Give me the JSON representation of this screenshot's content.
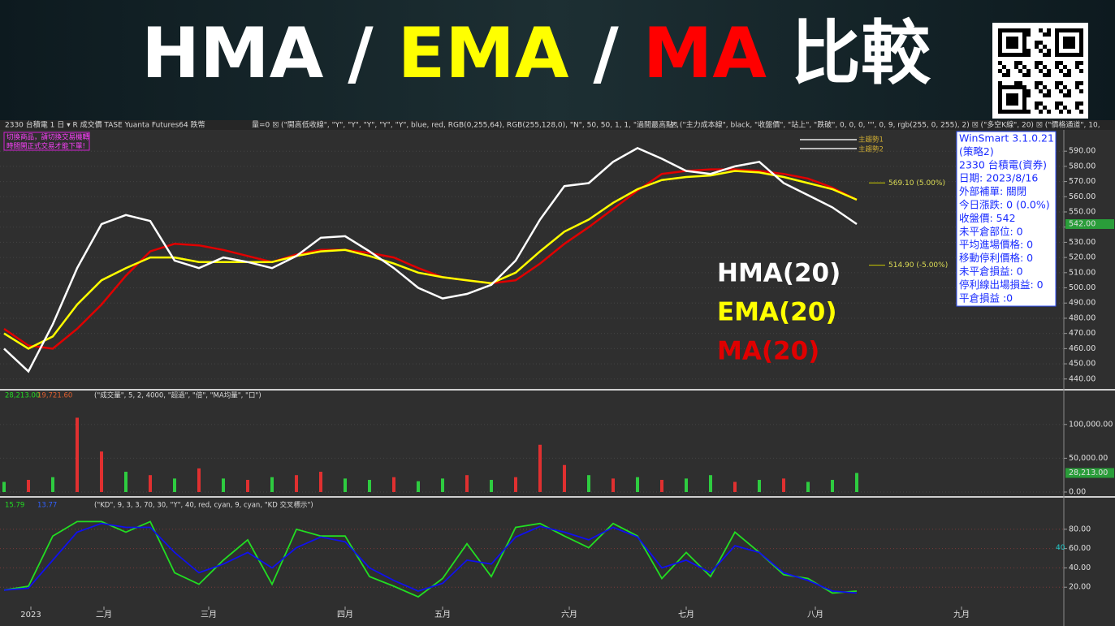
{
  "header": {
    "title_parts": [
      "HMA / ",
      "EMA",
      " / ",
      "MA",
      " 比較"
    ],
    "title_colors": [
      "#ffffff",
      "#ffff00",
      "#ffffff",
      "#ff0000",
      "#ffffff"
    ]
  },
  "toolbar": {
    "left": "2330  台積電  1 日  ▾  R  成交價  TASE  Yuanta Futures64  跌幣",
    "formula": "量=0  ☒  (\"開高低收線\", \"Y\", \"Y\", \"Y\", \"Y\", \"Y\", blue, red, RGB(0,255,64), RGB(255,128,0), \"N\", 50, 50, 1, 1, \"過間最高點\",",
    "formula2": "☒  (\"主力成本線\", black, \"收盤價\", \"站上\", \"跌破\", 0, 0, 0, \"\", 0, 9, rgb(255, 0, 255), 2)  ☒  (\"多空K線\", 20)  ☒  (\"價格通道\", 10,"
  },
  "notice": [
    "切換商品，請切換交易機轉",
    "時間開正式交易才能下單!"
  ],
  "legend_small": [
    "主趨勢1",
    "主趨勢2"
  ],
  "info_box": [
    "WinSmart 3.1.0.21",
    "(策略2)",
    "2330 台積電(資券)",
    "日期: 2023/8/16",
    "外部補單: 關閉",
    "今日漲跌: 0 (0.0%)",
    "收盤價: 542",
    "未平倉部位: 0",
    "平均進場價格: 0",
    "移動停利價格: 0",
    "未平倉損益: 0",
    "停利線出場損益: 0",
    "平倉損益 :0"
  ],
  "chart_data": [
    {
      "type": "line",
      "xlim": [
        0,
        43.5
      ],
      "ylim": [
        434,
        604
      ],
      "yticks": [
        {
          "value": 440,
          "label": "440.00"
        },
        {
          "value": 450,
          "label": "450.00"
        },
        {
          "value": 460,
          "label": "460.00"
        },
        {
          "value": 470,
          "label": "470.00"
        },
        {
          "value": 480,
          "label": "480.00"
        },
        {
          "value": 490,
          "label": "490.00"
        },
        {
          "value": 500,
          "label": "500.00"
        },
        {
          "value": 510,
          "label": "510.00"
        },
        {
          "value": 520,
          "label": "520.00"
        },
        {
          "value": 530,
          "label": "530.00"
        },
        {
          "value": 540,
          "label": "540.00"
        },
        {
          "value": 550,
          "label": "550.00"
        },
        {
          "value": 560,
          "label": "560.00"
        },
        {
          "value": 570,
          "label": "570.00"
        },
        {
          "value": 580,
          "label": "580.00"
        },
        {
          "value": 590,
          "label": "590.00"
        }
      ],
      "series": [
        {
          "name": "MA(20)",
          "color": "#e00000",
          "values": [
            473,
            462,
            460,
            473,
            489,
            508,
            524,
            529,
            528,
            525,
            521,
            517,
            522,
            525,
            525,
            523,
            520,
            513,
            507,
            505,
            503,
            505,
            516,
            529,
            540,
            552,
            564,
            575,
            577,
            578,
            578,
            577,
            575,
            572,
            566,
            558
          ]
        },
        {
          "name": "EMA(20)",
          "color": "#ffff00",
          "values": [
            470,
            460,
            468,
            489,
            505,
            513,
            520,
            520,
            517,
            517,
            517,
            517,
            521,
            524,
            525,
            521,
            516,
            510,
            507,
            505,
            503,
            510,
            524,
            537,
            545,
            556,
            565,
            571,
            573,
            574,
            577,
            576,
            573,
            569,
            565,
            558
          ]
        },
        {
          "name": "HMA(20)",
          "color": "#ffffff",
          "values": [
            460,
            445,
            476,
            513,
            542,
            548,
            544,
            518,
            513,
            520,
            517,
            513,
            521,
            533,
            534,
            524,
            513,
            500,
            493,
            496,
            502,
            518,
            545,
            567,
            569,
            583,
            592,
            585,
            577,
            575,
            580,
            583,
            569,
            561,
            553,
            542
          ]
        }
      ],
      "annotations": [
        {
          "value": 569.1,
          "label": "569.10 (5.00%)"
        },
        {
          "value": 514.9,
          "label": "514.90 (-5.00%)"
        }
      ],
      "last_price": {
        "value": 542,
        "label": "542.00"
      }
    },
    {
      "type": "bar",
      "xlim": [
        0,
        43.5
      ],
      "ylim": [
        0,
        149000
      ],
      "header": [
        "28,213.00",
        "19,721.60",
        "(\"成交量\", 5, 2, 4000, \"超過\", \"倍\", \"MA均量\", \"口\")"
      ],
      "yticks": [
        {
          "value": 0,
          "label": "0.00"
        },
        {
          "value": 50000,
          "label": "50,000.00"
        },
        {
          "value": 100000,
          "label": "100,000.00"
        }
      ],
      "values": [
        15000,
        18000,
        22000,
        110000,
        60000,
        30000,
        25000,
        20000,
        35000,
        20000,
        18000,
        22000,
        25000,
        30000,
        20000,
        18000,
        22000,
        16000,
        20000,
        25000,
        18000,
        22000,
        70000,
        40000,
        25000,
        20000,
        22000,
        18000,
        20000,
        25000,
        15000,
        18000,
        20000,
        15000,
        18000,
        28213
      ],
      "colors": [
        "#2ecc40",
        "#e03030",
        "#2ecc40",
        "#e03030",
        "#e03030",
        "#2ecc40",
        "#e03030",
        "#2ecc40",
        "#e03030",
        "#2ecc40",
        "#e03030",
        "#2ecc40",
        "#e03030",
        "#e03030",
        "#2ecc40",
        "#2ecc40",
        "#e03030",
        "#2ecc40",
        "#2ecc40",
        "#e03030",
        "#2ecc40",
        "#e03030",
        "#e03030",
        "#e03030",
        "#2ecc40",
        "#e03030",
        "#2ecc40",
        "#e03030",
        "#2ecc40",
        "#2ecc40",
        "#e03030",
        "#2ecc40",
        "#e03030",
        "#2ecc40",
        "#2ecc40",
        "#2ecc40"
      ],
      "last_value": {
        "value": 28213,
        "label": "28,213.00"
      }
    },
    {
      "type": "line",
      "xlim": [
        0,
        43.5
      ],
      "ylim": [
        0,
        111
      ],
      "header": [
        "15.79",
        "13.77",
        "(\"KD\", 9, 3, 3, 70, 30, \"Y\", 40, red, cyan, 9, cyan, \"KD 交叉標示\")"
      ],
      "yticks": [
        {
          "value": 20,
          "label": "20.00"
        },
        {
          "value": 40,
          "label": "40.00"
        },
        {
          "value": 60,
          "label": "60.00"
        },
        {
          "value": 80,
          "label": "80.00"
        }
      ],
      "level_label": 40,
      "series": [
        {
          "name": "K",
          "color": "#22dd22",
          "values": [
            17,
            21,
            73,
            88,
            88,
            77,
            88,
            35,
            23,
            48,
            69,
            23,
            80,
            73,
            73,
            31,
            21,
            10,
            29,
            65,
            31,
            82,
            86,
            73,
            61,
            86,
            73,
            29,
            56,
            31,
            77,
            56,
            33,
            29,
            14,
            16
          ]
        },
        {
          "name": "D",
          "color": "#1010ee",
          "values": [
            17,
            19,
            48,
            77,
            86,
            82,
            82,
            56,
            35,
            44,
            56,
            40,
            61,
            72,
            67,
            40,
            27,
            16,
            24,
            48,
            44,
            72,
            83,
            77,
            69,
            82,
            72,
            40,
            48,
            35,
            63,
            56,
            35,
            27,
            16,
            14
          ]
        }
      ],
      "xticks": [
        {
          "value": 1.1,
          "label": "2023"
        },
        {
          "value": 4.1,
          "label": "二月"
        },
        {
          "value": 8.4,
          "label": "三月"
        },
        {
          "value": 14,
          "label": "四月"
        },
        {
          "value": 18,
          "label": "五月"
        },
        {
          "value": 23.2,
          "label": "六月"
        },
        {
          "value": 28,
          "label": "七月"
        },
        {
          "value": 33.3,
          "label": "八月"
        },
        {
          "value": 39.3,
          "label": "九月"
        }
      ]
    }
  ]
}
